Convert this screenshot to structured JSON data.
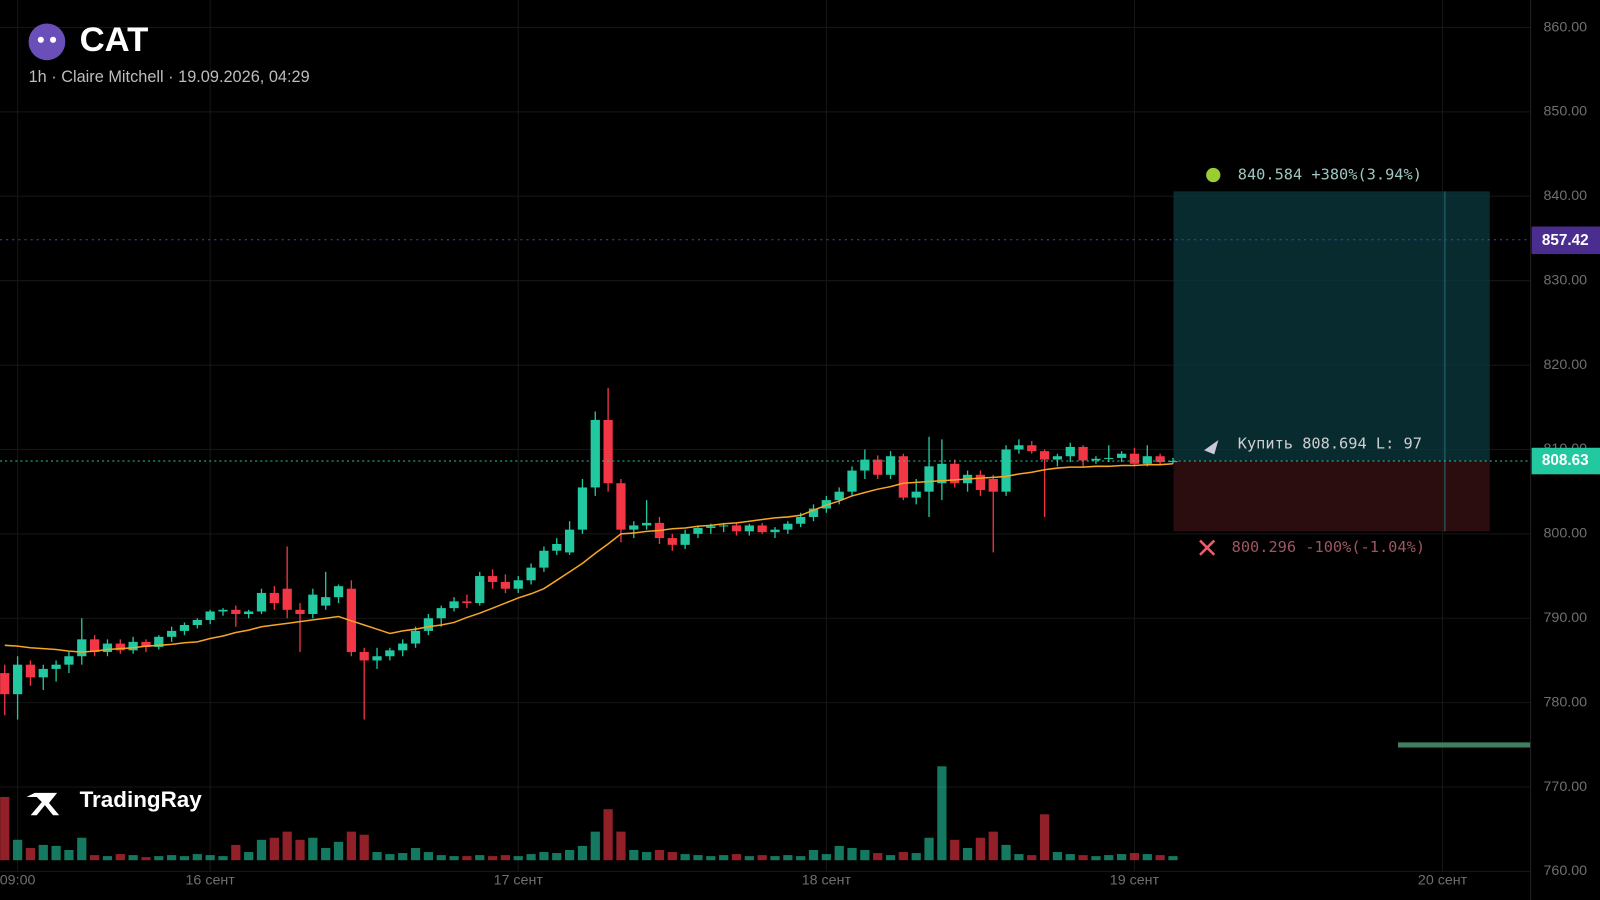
{
  "chart_data": {
    "type": "candlestick",
    "title": "CAT",
    "subtitle": "1h · Claire Mitchell · 19.09.2026, 04:29",
    "brand": "TradingRay",
    "up_color": "#22c9a0",
    "down_color": "#f23645",
    "ma_color": "#f5a623",
    "grid": true,
    "ylim": [
      760,
      863.26
    ],
    "yticks": [
      {
        "value": 860,
        "label": "860.00"
      },
      {
        "value": 850,
        "label": "850.00"
      },
      {
        "value": 840,
        "label": "840.00"
      },
      {
        "value": 830,
        "label": "830.00"
      },
      {
        "value": 820,
        "label": "820.00"
      },
      {
        "value": 810,
        "label": "810.00"
      },
      {
        "value": 800,
        "label": "800.00"
      },
      {
        "value": 790,
        "label": "790.00"
      },
      {
        "value": 780,
        "label": "780.00"
      },
      {
        "value": 770,
        "label": "770.00"
      },
      {
        "value": 760,
        "label": "760.00"
      }
    ],
    "xlim": [
      -0.37,
      118.86
    ],
    "xticks": [
      {
        "value": 1,
        "label": "09:00"
      },
      {
        "value": 16,
        "label": "16 сент"
      },
      {
        "value": 40,
        "label": "17 сент"
      },
      {
        "value": 64,
        "label": "18 сент"
      },
      {
        "value": 88,
        "label": "19 сент"
      },
      {
        "value": 112,
        "label": "20 сент"
      }
    ],
    "vlim": [
      0,
      100
    ],
    "candles": [
      [
        783.5,
        784.5,
        778.5,
        781.0
      ],
      [
        781.0,
        785.5,
        778.0,
        784.5
      ],
      [
        784.5,
        785.0,
        782.0,
        783.0
      ],
      [
        783.0,
        784.5,
        781.5,
        784.0
      ],
      [
        784.0,
        785.0,
        782.5,
        784.5
      ],
      [
        784.5,
        786.0,
        783.5,
        785.5
      ],
      [
        785.5,
        790.0,
        784.5,
        787.5
      ],
      [
        787.5,
        788.0,
        785.5,
        786.0
      ],
      [
        786.0,
        787.5,
        785.5,
        787.0
      ],
      [
        787.0,
        787.5,
        785.8,
        786.2
      ],
      [
        786.2,
        787.8,
        785.8,
        787.2
      ],
      [
        787.2,
        787.5,
        786.0,
        786.6
      ],
      [
        786.6,
        788.0,
        786.3,
        787.8
      ],
      [
        787.8,
        789.0,
        787.2,
        788.5
      ],
      [
        788.5,
        789.5,
        788.0,
        789.2
      ],
      [
        789.2,
        790.0,
        788.8,
        789.8
      ],
      [
        789.8,
        791.0,
        789.3,
        790.8
      ],
      [
        790.8,
        791.2,
        790.3,
        791.0
      ],
      [
        791.0,
        791.5,
        789.0,
        790.5
      ],
      [
        790.5,
        791.0,
        790.0,
        790.8
      ],
      [
        790.8,
        793.5,
        790.5,
        793.0
      ],
      [
        793.0,
        793.8,
        791.0,
        791.8
      ],
      [
        793.5,
        798.5,
        790.0,
        791.0
      ],
      [
        791.0,
        791.8,
        786.0,
        790.5
      ],
      [
        790.5,
        793.5,
        790.0,
        792.8
      ],
      [
        791.5,
        795.5,
        791.0,
        792.5
      ],
      [
        792.5,
        794.0,
        791.8,
        793.8
      ],
      [
        793.5,
        794.5,
        785.5,
        786.0
      ],
      [
        786.0,
        786.5,
        778.0,
        785.0
      ],
      [
        785.0,
        786.5,
        784.0,
        785.5
      ],
      [
        785.5,
        786.5,
        785.0,
        786.2
      ],
      [
        786.2,
        787.5,
        785.5,
        787.0
      ],
      [
        787.0,
        789.0,
        786.5,
        788.5
      ],
      [
        788.5,
        790.5,
        788.0,
        790.0
      ],
      [
        790.0,
        791.5,
        789.0,
        791.2
      ],
      [
        791.2,
        792.5,
        790.8,
        792.0
      ],
      [
        792.0,
        792.8,
        791.2,
        791.8
      ],
      [
        791.8,
        795.5,
        791.5,
        795.0
      ],
      [
        795.0,
        795.8,
        793.5,
        794.3
      ],
      [
        794.3,
        795.2,
        793.0,
        793.5
      ],
      [
        793.5,
        795.0,
        793.0,
        794.5
      ],
      [
        794.5,
        796.5,
        794.0,
        796.0
      ],
      [
        796.0,
        798.5,
        795.5,
        798.0
      ],
      [
        798.0,
        799.5,
        797.5,
        798.8
      ],
      [
        797.8,
        801.5,
        797.5,
        800.5
      ],
      [
        800.5,
        806.5,
        800.0,
        805.5
      ],
      [
        805.5,
        814.5,
        804.5,
        813.5
      ],
      [
        813.5,
        817.3,
        805.0,
        806.0
      ],
      [
        806.0,
        806.5,
        799.0,
        800.5
      ],
      [
        800.5,
        801.5,
        799.5,
        801.0
      ],
      [
        801.0,
        804.0,
        800.5,
        801.3
      ],
      [
        801.3,
        802.0,
        798.8,
        799.5
      ],
      [
        799.5,
        800.0,
        798.0,
        798.7
      ],
      [
        798.7,
        800.5,
        798.2,
        800.0
      ],
      [
        800.0,
        801.0,
        799.5,
        800.7
      ],
      [
        800.7,
        801.2,
        800.0,
        800.9
      ],
      [
        800.9,
        801.3,
        800.2,
        801.0
      ],
      [
        801.0,
        801.3,
        799.8,
        800.3
      ],
      [
        800.3,
        801.2,
        799.8,
        801.0
      ],
      [
        801.0,
        801.3,
        800.0,
        800.2
      ],
      [
        800.2,
        800.8,
        799.5,
        800.5
      ],
      [
        800.5,
        801.5,
        800.0,
        801.2
      ],
      [
        801.2,
        802.5,
        800.8,
        802.0
      ],
      [
        802.0,
        803.5,
        801.5,
        803.0
      ],
      [
        803.0,
        804.5,
        802.5,
        804.0
      ],
      [
        804.0,
        805.5,
        803.5,
        805.0
      ],
      [
        805.0,
        808.0,
        804.5,
        807.5
      ],
      [
        807.5,
        810.0,
        806.5,
        808.8
      ],
      [
        808.8,
        809.3,
        806.5,
        807.0
      ],
      [
        807.0,
        809.8,
        806.5,
        809.2
      ],
      [
        809.2,
        809.5,
        804.0,
        804.3
      ],
      [
        804.3,
        806.5,
        803.5,
        805.0
      ],
      [
        805.0,
        811.5,
        802.0,
        808.0
      ],
      [
        806.0,
        811.2,
        804.0,
        808.3
      ],
      [
        808.3,
        808.8,
        805.5,
        806.0
      ],
      [
        806.0,
        807.5,
        805.0,
        807.0
      ],
      [
        807.0,
        807.5,
        804.5,
        805.2
      ],
      [
        806.5,
        807.0,
        797.8,
        805.0
      ],
      [
        805.0,
        810.5,
        804.5,
        810.0
      ],
      [
        810.0,
        811.2,
        809.5,
        810.5
      ],
      [
        810.5,
        811.0,
        809.5,
        809.8
      ],
      [
        809.8,
        810.0,
        802.0,
        808.8
      ],
      [
        808.8,
        809.5,
        808.0,
        809.2
      ],
      [
        809.2,
        810.8,
        808.5,
        810.3
      ],
      [
        810.3,
        810.5,
        808.0,
        808.7
      ],
      [
        808.7,
        809.2,
        808.3,
        808.9
      ],
      [
        808.9,
        810.5,
        808.5,
        809.0
      ],
      [
        809.0,
        809.8,
        808.5,
        809.5
      ],
      [
        809.5,
        810.2,
        808.0,
        808.3
      ],
      [
        808.3,
        810.5,
        808.0,
        809.2
      ],
      [
        809.2,
        809.5,
        808.2,
        808.5
      ],
      [
        808.5,
        809.0,
        808.3,
        808.63
      ]
    ],
    "volume": [
      62,
      20,
      12,
      15,
      14,
      10,
      22,
      5,
      4,
      6,
      5,
      3,
      4,
      5,
      4,
      6,
      5,
      4,
      15,
      8,
      20,
      22,
      28,
      20,
      22,
      12,
      18,
      28,
      25,
      8,
      6,
      7,
      12,
      8,
      5,
      4,
      4,
      5,
      4,
      5,
      4,
      6,
      8,
      7,
      10,
      14,
      28,
      50,
      28,
      10,
      8,
      10,
      8,
      6,
      5,
      4,
      5,
      6,
      4,
      5,
      4,
      5,
      4,
      10,
      6,
      14,
      12,
      10,
      7,
      5,
      8,
      7,
      22,
      92,
      20,
      12,
      22,
      28,
      15,
      6,
      5,
      45,
      8,
      6,
      5,
      4,
      5,
      6,
      7,
      6,
      5,
      4
    ],
    "ma": [
      786.8,
      786.7,
      786.5,
      786.4,
      786.3,
      786.1,
      786.0,
      786.1,
      786.3,
      786.4,
      786.5,
      786.7,
      786.8,
      786.9,
      787.1,
      787.2,
      787.6,
      787.9,
      788.3,
      788.6,
      789.0,
      789.2,
      789.4,
      789.6,
      789.8,
      790.0,
      790.2,
      789.7,
      789.2,
      788.7,
      788.2,
      788.5,
      788.7,
      789.0,
      789.2,
      789.5,
      790.1,
      790.6,
      791.2,
      791.8,
      792.4,
      792.9,
      793.5,
      794.5,
      795.5,
      796.5,
      797.7,
      798.8,
      800.0,
      800.1,
      800.3,
      800.4,
      800.6,
      800.7,
      800.9,
      801.0,
      801.2,
      801.3,
      801.5,
      801.7,
      801.9,
      802.0,
      802.2,
      802.8,
      803.4,
      803.9,
      804.5,
      804.9,
      805.3,
      805.6,
      806.0,
      806.1,
      806.2,
      806.3,
      806.4,
      806.5,
      806.6,
      806.7,
      806.8,
      807.1,
      807.3,
      807.6,
      807.8,
      807.9,
      807.9,
      808.0,
      808.0,
      808.1,
      808.1,
      808.2,
      808.2,
      808.3
    ],
    "current_price": 808.63,
    "price_tag": "857.42",
    "position": {
      "entry": 808.694,
      "take": 840.584,
      "stop": 800.296,
      "take_label": "840.584 +380%(3.94%)",
      "entry_label": "Купить 808.694 L: 97",
      "stop_label": "800.296 -100%(-1.04%)"
    }
  }
}
